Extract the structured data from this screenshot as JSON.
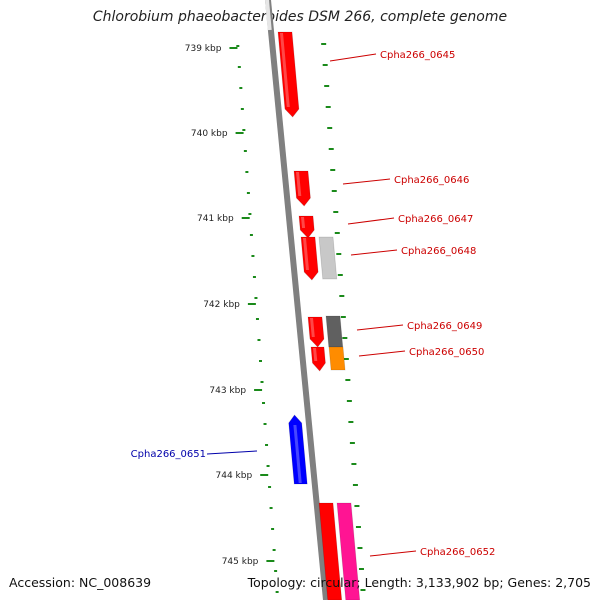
{
  "title": "Chlorobium phaeobacteroides DSM 266, complete genome",
  "footer": {
    "accession": "Accession: NC_008639",
    "topology": "Topology: circular; Length: 3,133,902 bp; Genes: 2,705"
  },
  "colors": {
    "tick": "#1a8a1a",
    "backbone": "#808080",
    "forward_label": "#cc0000",
    "reverse_label": "#0000aa"
  },
  "ticks": [
    {
      "label": "739 kbp",
      "kbp": 739
    },
    {
      "label": "740 kbp",
      "kbp": 740
    },
    {
      "label": "741 kbp",
      "kbp": 741
    },
    {
      "label": "742 kbp",
      "kbp": 742
    },
    {
      "label": "743 kbp",
      "kbp": 743
    },
    {
      "label": "744 kbp",
      "kbp": 744
    },
    {
      "label": "745 kbp",
      "kbp": 745
    }
  ],
  "genes": [
    {
      "id": "Cpha266_0645",
      "strand": "+",
      "color": "#ff0000"
    },
    {
      "id": "Cpha266_0646",
      "strand": "+",
      "color": "#ff0000"
    },
    {
      "id": "Cpha266_0647",
      "strand": "+",
      "color": "#ff0000"
    },
    {
      "id": "Cpha266_0648",
      "strand": "+",
      "color": "#ff0000",
      "second_color": "#c8c8c8"
    },
    {
      "id": "Cpha266_0649",
      "strand": "+",
      "color": "#ff0000",
      "second_color": "#606060"
    },
    {
      "id": "Cpha266_0650",
      "strand": "+",
      "color": "#ff0000",
      "second_color": "#ff8c00"
    },
    {
      "id": "Cpha266_0651",
      "strand": "-",
      "color": "#0000ff"
    },
    {
      "id": "Cpha266_0652",
      "strand": "+",
      "color": "#ff0000",
      "second_color": "#ff1493"
    }
  ]
}
